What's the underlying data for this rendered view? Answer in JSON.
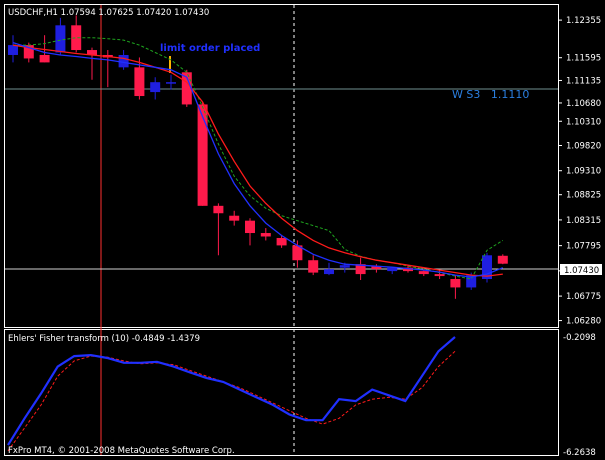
{
  "main_chart": {
    "header": "USDCHF,H1  1.07594 1.07625 1.07420 1.07430",
    "price_axis_labels": [
      "1.12355",
      "1.11595",
      "1.11135",
      "1.10680",
      "1.10310",
      "1.09820",
      "1.09310",
      "1.08825",
      "1.08315",
      "1.07795",
      "1.07285",
      "1.06775",
      "1.06280"
    ],
    "current_price_tag": "1.07430",
    "annotation": "limit order placed",
    "level_label": "W S3   1.1110",
    "colors": {
      "background": "#000000",
      "axis": "#ffffff",
      "bull_candle": "#1f1fe0",
      "bear_candle": "#ff1a4b",
      "ma_red": "#ff1a1a",
      "ma_blue": "#2030ff",
      "ma_green_dashed": "#1fa31f",
      "level_line": "#6f8f8f",
      "annotation": "#2030ff",
      "level_label": "#2b7fe0",
      "vertical_red": "#ff3030",
      "marker": "#ffb400"
    }
  },
  "indicator": {
    "header": "Ehlers' Fisher transform (10) -0.4849 -1.4379",
    "axis_top": "-0.2098",
    "axis_bottom": "-6.2638",
    "colors": {
      "fisher": "#2030ff",
      "signal": "#ff1a1a"
    }
  },
  "footer": {
    "copyright": "FxPro MT4, © 2001-2008 MetaQuotes Software Corp."
  },
  "candles": [
    {
      "o": 1.1165,
      "h": 1.1205,
      "l": 1.115,
      "c": 1.1185
    },
    {
      "o": 1.1185,
      "h": 1.119,
      "l": 1.115,
      "c": 1.1158
    },
    {
      "o": 1.1165,
      "h": 1.1205,
      "l": 1.115,
      "c": 1.115
    },
    {
      "o": 1.117,
      "h": 1.124,
      "l": 1.1165,
      "c": 1.1225
    },
    {
      "o": 1.1225,
      "h": 1.1245,
      "l": 1.117,
      "c": 1.1175
    },
    {
      "o": 1.1175,
      "h": 1.118,
      "l": 1.1115,
      "c": 1.1165
    },
    {
      "o": 1.1165,
      "h": 1.1175,
      "l": 1.11,
      "c": 1.116
    },
    {
      "o": 1.114,
      "h": 1.1175,
      "l": 1.1135,
      "c": 1.1165
    },
    {
      "o": 1.114,
      "h": 1.116,
      "l": 1.1075,
      "c": 1.1082
    },
    {
      "o": 1.109,
      "h": 1.112,
      "l": 1.1075,
      "c": 1.111
    },
    {
      "o": 1.111,
      "h": 1.1125,
      "l": 1.1095,
      "c": 1.111
    },
    {
      "o": 1.113,
      "h": 1.1135,
      "l": 1.106,
      "c": 1.1065
    },
    {
      "o": 1.1065,
      "h": 1.107,
      "l": 1.086,
      "c": 1.086
    },
    {
      "o": 1.086,
      "h": 1.0865,
      "l": 1.076,
      "c": 1.0845
    },
    {
      "o": 1.084,
      "h": 1.085,
      "l": 1.082,
      "c": 1.083
    },
    {
      "o": 1.083,
      "h": 1.0835,
      "l": 1.078,
      "c": 1.0805
    },
    {
      "o": 1.0805,
      "h": 1.0815,
      "l": 1.079,
      "c": 1.0798
    },
    {
      "o": 1.0795,
      "h": 1.08,
      "l": 1.0775,
      "c": 1.078
    },
    {
      "o": 1.078,
      "h": 1.079,
      "l": 1.0735,
      "c": 1.075
    },
    {
      "o": 1.075,
      "h": 1.076,
      "l": 1.072,
      "c": 1.0725
    },
    {
      "o": 1.0722,
      "h": 1.0745,
      "l": 1.072,
      "c": 1.0732
    },
    {
      "o": 1.0735,
      "h": 1.0745,
      "l": 1.0725,
      "c": 1.074
    },
    {
      "o": 1.0742,
      "h": 1.0755,
      "l": 1.071,
      "c": 1.0722
    },
    {
      "o": 1.0738,
      "h": 1.0742,
      "l": 1.0725,
      "c": 1.0732
    },
    {
      "o": 1.0728,
      "h": 1.0735,
      "l": 1.0722,
      "c": 1.0735
    },
    {
      "o": 1.0735,
      "h": 1.074,
      "l": 1.0725,
      "c": 1.0728
    },
    {
      "o": 1.0728,
      "h": 1.0735,
      "l": 1.0718,
      "c": 1.0722
    },
    {
      "o": 1.0722,
      "h": 1.073,
      "l": 1.0712,
      "c": 1.0718
    },
    {
      "o": 1.0712,
      "h": 1.072,
      "l": 1.0672,
      "c": 1.0695
    },
    {
      "o": 1.0695,
      "h": 1.0725,
      "l": 1.069,
      "c": 1.072
    },
    {
      "o": 1.0712,
      "h": 1.0765,
      "l": 1.0705,
      "c": 1.076
    },
    {
      "o": 1.0759,
      "h": 1.0762,
      "l": 1.0742,
      "c": 1.0743
    }
  ],
  "ma_red": [
    1.1185,
    1.118,
    1.1176,
    1.1172,
    1.1168,
    1.1165,
    1.1162,
    1.1158,
    1.115,
    1.114,
    1.113,
    1.111,
    1.107,
    1.1005,
    1.095,
    1.09,
    1.0865,
    1.0835,
    1.081,
    1.079,
    1.0775,
    1.0765,
    1.0757,
    1.075,
    1.0745,
    1.074,
    1.0735,
    1.073,
    1.0725,
    1.072,
    1.0718,
    1.0722
  ],
  "ma_blue": [
    1.119,
    1.118,
    1.117,
    1.1165,
    1.1162,
    1.1158,
    1.1155,
    1.115,
    1.1145,
    1.114,
    1.1135,
    1.112,
    1.104,
    1.0965,
    1.0905,
    1.086,
    1.0825,
    1.08,
    1.078,
    1.0762,
    1.075,
    1.0742,
    1.074,
    1.0738,
    1.0736,
    1.0733,
    1.073,
    1.0726,
    1.072,
    1.0716,
    1.0722,
    1.0735
  ],
  "ma_green": [
    1.1185,
    1.1185,
    1.1188,
    1.1195,
    1.12,
    1.12,
    1.1198,
    1.1195,
    1.1185,
    1.117,
    1.1155,
    1.113,
    1.106,
    1.0985,
    1.092,
    1.088,
    1.0855,
    1.084,
    1.083,
    1.082,
    1.081,
    1.0772,
    1.0758,
    1.075,
    1.0745,
    1.0738,
    1.0732,
    1.0725,
    1.0718,
    1.0712,
    1.077,
    1.079
  ],
  "fisher": [
    -5.9,
    -4.5,
    -3.2,
    -1.8,
    -1.25,
    -1.2,
    -1.35,
    -1.6,
    -1.6,
    -1.55,
    -1.8,
    -2.1,
    -2.4,
    -2.6,
    -3.0,
    -3.4,
    -3.8,
    -4.3,
    -4.6,
    -4.6,
    -3.5,
    -3.6,
    -3.0,
    -3.3,
    -3.6,
    -2.3,
    -1.0,
    -0.25
  ],
  "fisher_signal": [
    -6.2,
    -5.0,
    -3.8,
    -2.3,
    -1.5,
    -1.25,
    -1.3,
    -1.5,
    -1.65,
    -1.6,
    -1.7,
    -2.0,
    -2.3,
    -2.6,
    -2.9,
    -3.3,
    -3.7,
    -4.1,
    -4.5,
    -4.8,
    -4.5,
    -3.8,
    -3.5,
    -3.4,
    -3.5,
    -2.9,
    -1.8,
    -1.0
  ]
}
